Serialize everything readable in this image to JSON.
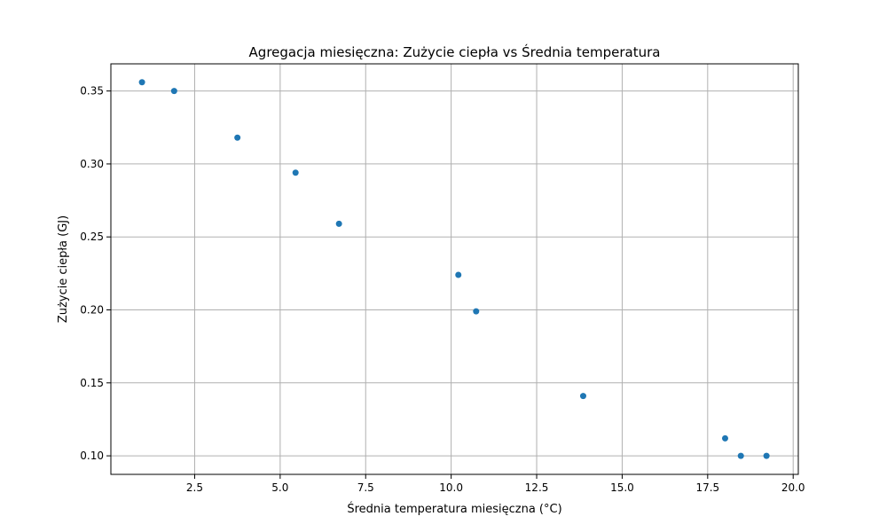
{
  "chart_data": {
    "type": "scatter",
    "title": "Agregacja miesięczna: Zużycie ciepła vs Średnia temperatura",
    "xlabel": "Średnia temperatura miesięczna (°C)",
    "ylabel": "Zużycie ciepła (GJ)",
    "xlim": [
      0.05,
      20.15
    ],
    "ylim": [
      0.0873,
      0.3686
    ],
    "xticks": [
      2.5,
      5.0,
      7.5,
      10.0,
      12.5,
      15.0,
      17.5,
      20.0
    ],
    "xtick_labels": [
      "2.5",
      "5.0",
      "7.5",
      "10.0",
      "12.5",
      "15.0",
      "17.5",
      "20.0"
    ],
    "yticks": [
      0.1,
      0.15,
      0.2,
      0.25,
      0.3,
      0.35
    ],
    "ytick_labels": [
      "0.10",
      "0.15",
      "0.20",
      "0.25",
      "0.30",
      "0.35"
    ],
    "grid": true,
    "marker_color": "#1f77b4",
    "grid_color": "#b0b0b0",
    "points": [
      {
        "x": 0.96,
        "y": 0.356
      },
      {
        "x": 1.9,
        "y": 0.35
      },
      {
        "x": 3.75,
        "y": 0.318
      },
      {
        "x": 5.45,
        "y": 0.294
      },
      {
        "x": 6.72,
        "y": 0.259
      },
      {
        "x": 10.21,
        "y": 0.224
      },
      {
        "x": 10.73,
        "y": 0.199
      },
      {
        "x": 13.86,
        "y": 0.141
      },
      {
        "x": 18.01,
        "y": 0.112
      },
      {
        "x": 18.47,
        "y": 0.1
      },
      {
        "x": 19.22,
        "y": 0.1
      }
    ]
  }
}
